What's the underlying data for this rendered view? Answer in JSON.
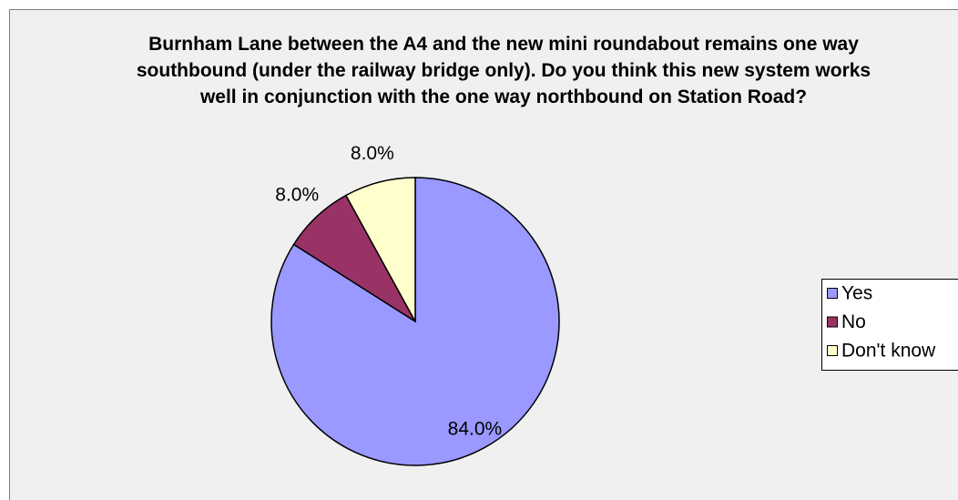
{
  "chart_data": {
    "type": "pie",
    "title": "Burnham Lane between the A4 and the new mini roundabout remains one way southbound (under the railway bridge only). Do you think this new system works well in conjunction with the one way northbound on Station Road?",
    "categories": [
      "Yes",
      "No",
      "Don't know"
    ],
    "values": [
      84,
      8,
      8
    ],
    "value_labels": [
      "84.0%",
      "8.0%",
      "8.0%"
    ],
    "colors": [
      "#9999ff",
      "#993366",
      "#ffffcc"
    ],
    "legend": "right"
  }
}
